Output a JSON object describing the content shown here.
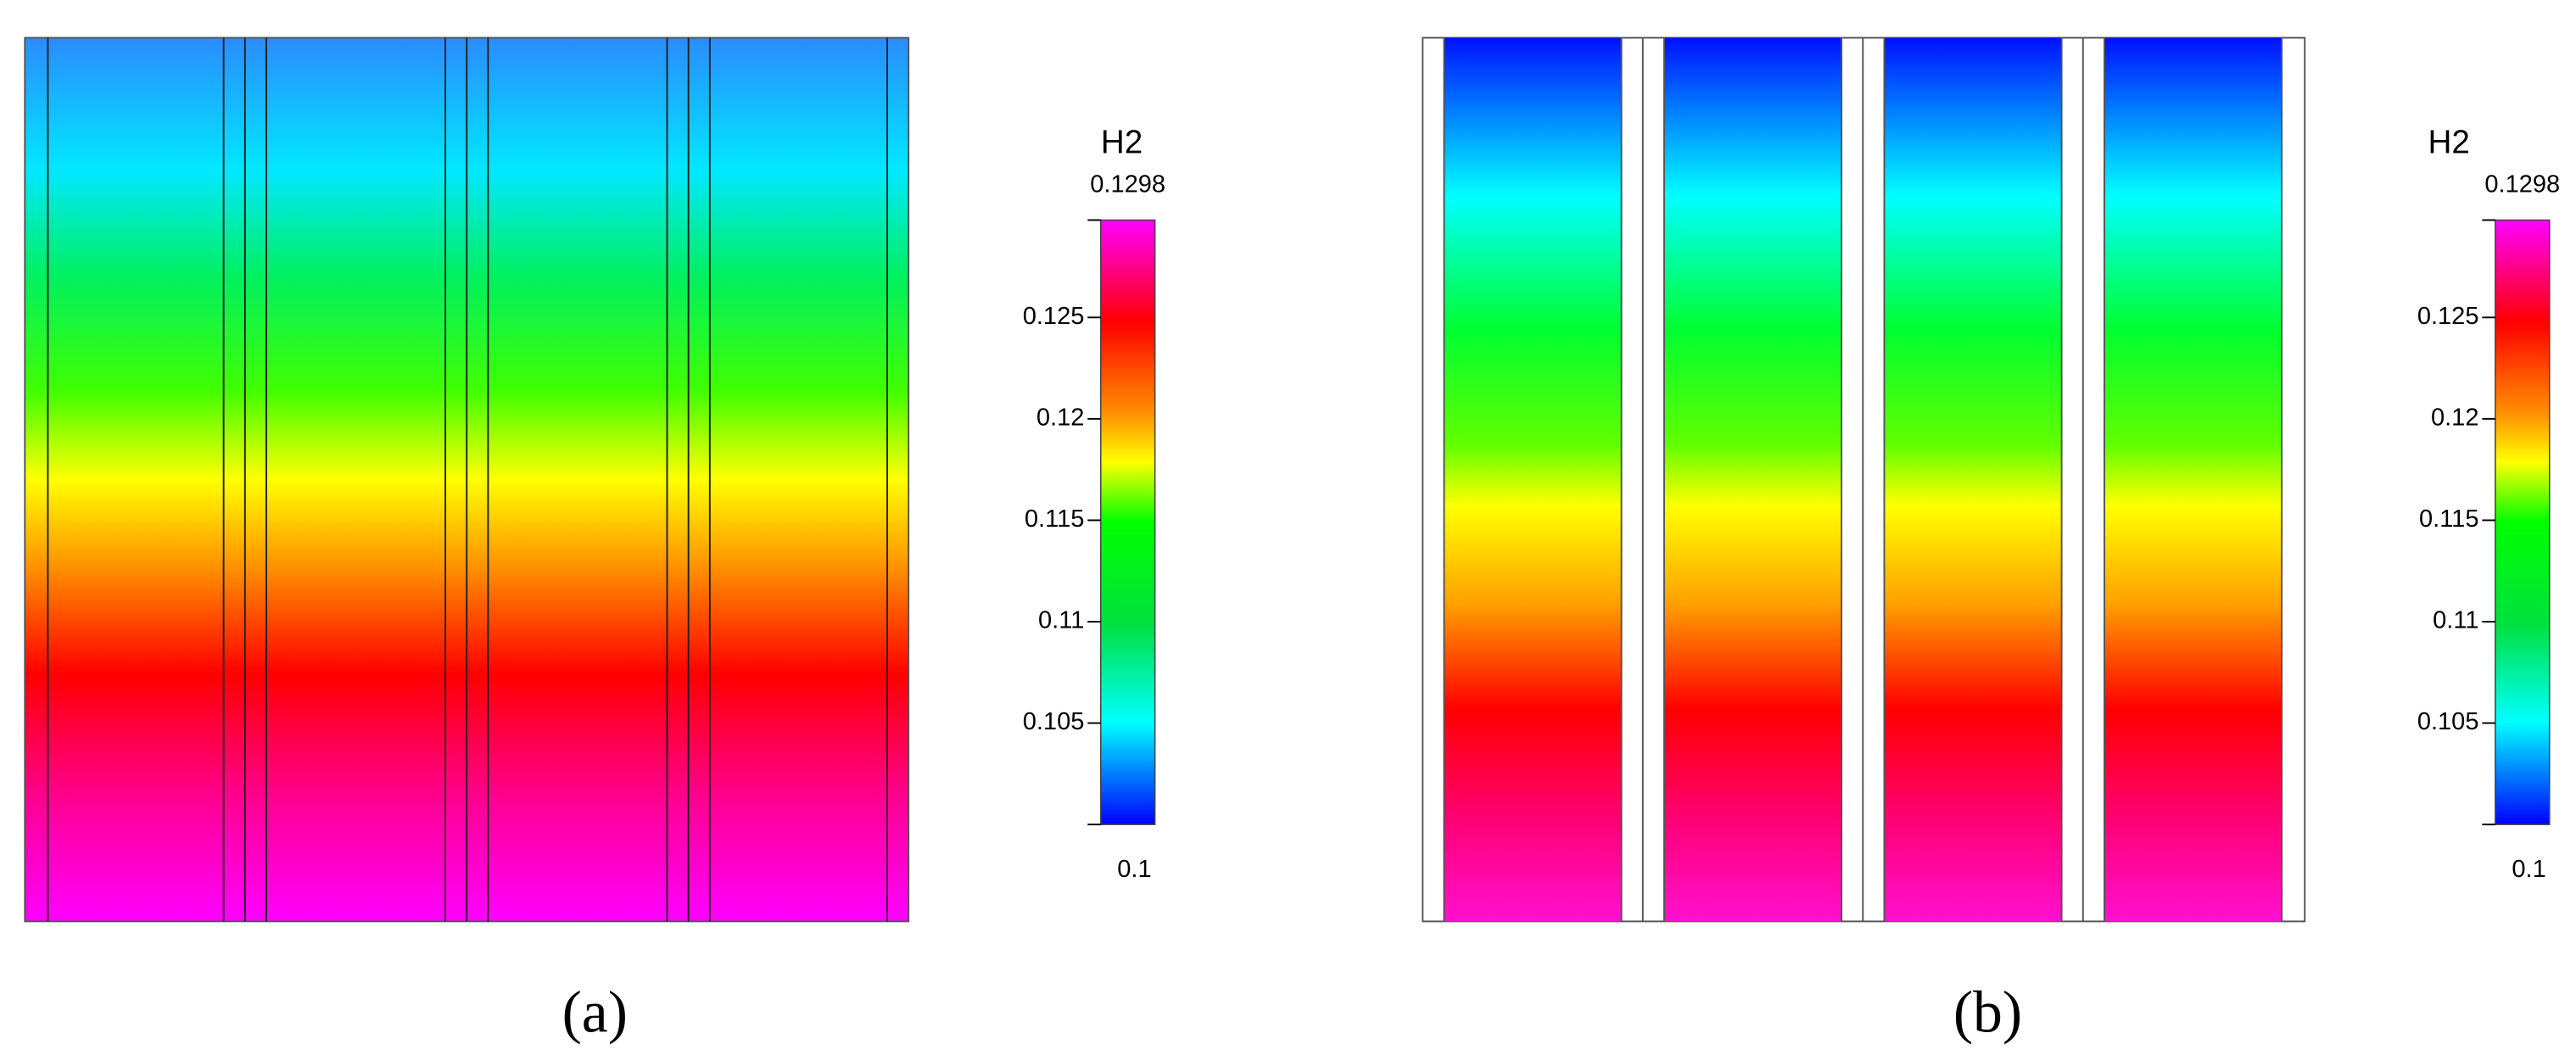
{
  "panels": [
    {
      "caption": "(a)",
      "colorbar": {
        "title": "H2",
        "max": 0.1298,
        "min": 0.1,
        "ticks": [
          0.125,
          0.12,
          0.115,
          0.11,
          0.105
        ]
      }
    },
    {
      "caption": "(b)",
      "colorbar": {
        "title": "H2",
        "max": 0.1298,
        "min": 0.1,
        "ticks": [
          0.125,
          0.12,
          0.115,
          0.11,
          0.105
        ]
      }
    }
  ]
}
